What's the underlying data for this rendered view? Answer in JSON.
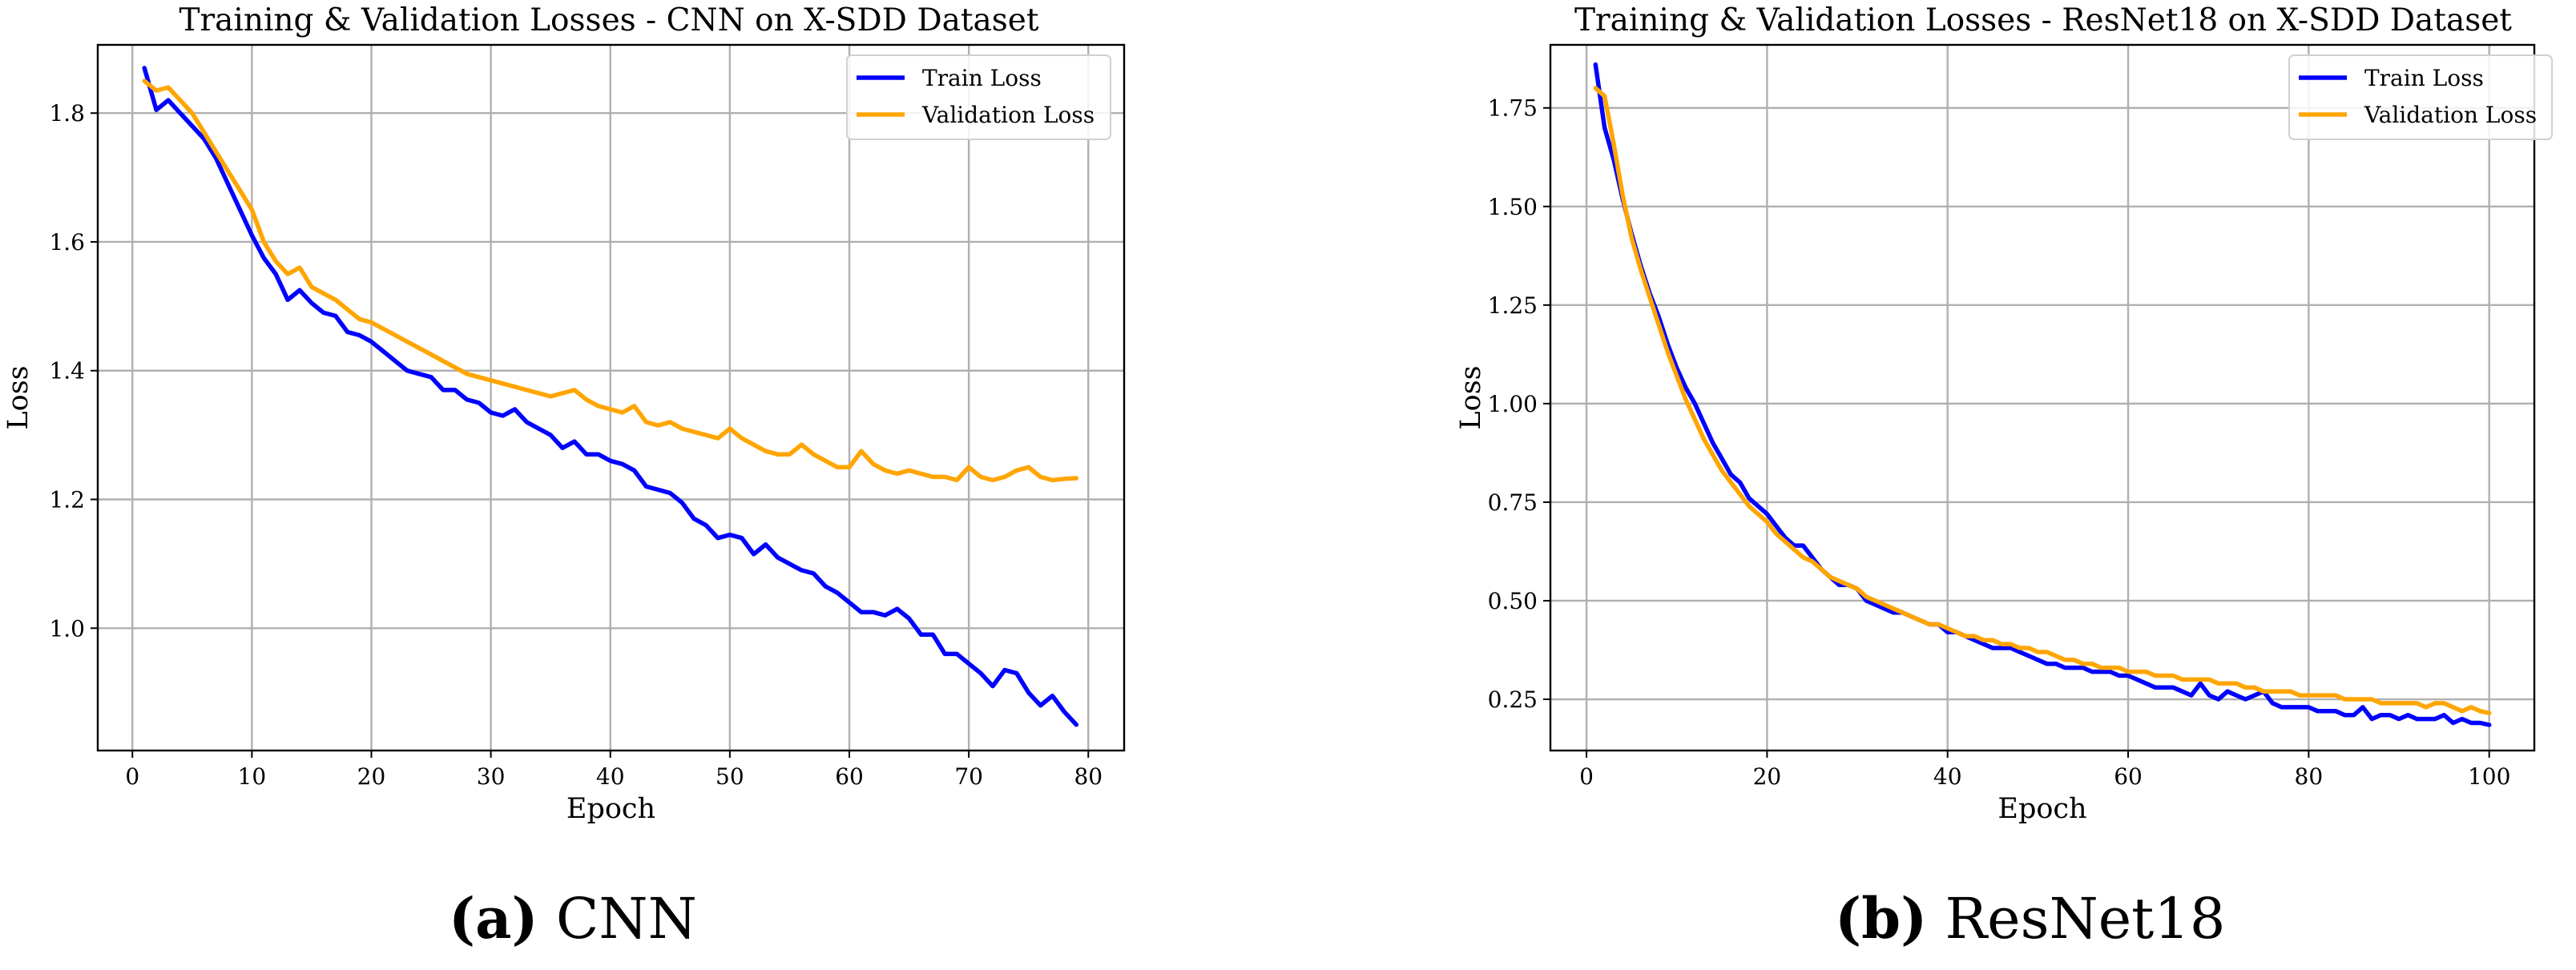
{
  "chart_data": [
    {
      "type": "line",
      "title": "Training & Validation Losses - CNN on X-SDD Dataset",
      "xlabel": "Epoch",
      "ylabel": "Loss",
      "xlim": [
        -2.9,
        83
      ],
      "ylim": [
        0.81,
        1.906
      ],
      "xticks": [
        0,
        10,
        20,
        30,
        40,
        50,
        60,
        70,
        80
      ],
      "yticks": [
        1.0,
        1.2,
        1.4,
        1.6,
        1.8
      ],
      "ytick_labels": [
        "1.0",
        "1.2",
        "1.4",
        "1.6",
        "1.8"
      ],
      "grid": true,
      "legend_position": "top-right",
      "caption_letter": "(a)",
      "caption_text": "CNN",
      "series": [
        {
          "name": "Train Loss",
          "color": "#0000ff",
          "x": [
            1,
            2,
            3,
            4,
            5,
            6,
            7,
            8,
            9,
            10,
            11,
            12,
            13,
            14,
            15,
            16,
            17,
            18,
            19,
            20,
            21,
            22,
            23,
            24,
            25,
            26,
            27,
            28,
            29,
            30,
            31,
            32,
            33,
            34,
            35,
            36,
            37,
            38,
            39,
            40,
            41,
            42,
            43,
            44,
            45,
            46,
            47,
            48,
            49,
            50,
            51,
            52,
            53,
            54,
            55,
            56,
            57,
            58,
            59,
            60,
            61,
            62,
            63,
            64,
            65,
            66,
            67,
            68,
            69,
            70,
            71,
            72,
            73,
            74,
            75,
            76,
            77,
            78,
            79
          ],
          "values": [
            1.87,
            1.805,
            1.82,
            1.8,
            1.78,
            1.76,
            1.73,
            1.69,
            1.65,
            1.61,
            1.575,
            1.55,
            1.51,
            1.525,
            1.505,
            1.49,
            1.485,
            1.46,
            1.455,
            1.445,
            1.43,
            1.415,
            1.4,
            1.395,
            1.39,
            1.37,
            1.37,
            1.355,
            1.35,
            1.335,
            1.33,
            1.34,
            1.32,
            1.31,
            1.3,
            1.28,
            1.29,
            1.27,
            1.27,
            1.26,
            1.255,
            1.245,
            1.22,
            1.215,
            1.21,
            1.195,
            1.17,
            1.16,
            1.14,
            1.145,
            1.14,
            1.115,
            1.13,
            1.11,
            1.1,
            1.09,
            1.085,
            1.065,
            1.055,
            1.04,
            1.025,
            1.025,
            1.02,
            1.03,
            1.015,
            0.99,
            0.99,
            0.96,
            0.96,
            0.945,
            0.93,
            0.91,
            0.935,
            0.93,
            0.9,
            0.88,
            0.895,
            0.87,
            0.85
          ]
        },
        {
          "name": "Validation Loss",
          "color": "#ffa500",
          "x": [
            1,
            2,
            3,
            4,
            5,
            6,
            7,
            8,
            9,
            10,
            11,
            12,
            13,
            14,
            15,
            16,
            17,
            18,
            19,
            20,
            21,
            22,
            23,
            24,
            25,
            26,
            27,
            28,
            29,
            30,
            31,
            32,
            33,
            34,
            35,
            36,
            37,
            38,
            39,
            40,
            41,
            42,
            43,
            44,
            45,
            46,
            47,
            48,
            49,
            50,
            51,
            52,
            53,
            54,
            55,
            56,
            57,
            58,
            59,
            60,
            61,
            62,
            63,
            64,
            65,
            66,
            67,
            68,
            69,
            70,
            71,
            72,
            73,
            74,
            75,
            76,
            77,
            78,
            79
          ],
          "values": [
            1.85,
            1.835,
            1.84,
            1.82,
            1.8,
            1.77,
            1.74,
            1.71,
            1.68,
            1.65,
            1.6,
            1.57,
            1.55,
            1.56,
            1.53,
            1.52,
            1.51,
            1.495,
            1.48,
            1.475,
            1.465,
            1.455,
            1.445,
            1.435,
            1.425,
            1.415,
            1.405,
            1.395,
            1.39,
            1.385,
            1.38,
            1.375,
            1.37,
            1.365,
            1.36,
            1.365,
            1.37,
            1.355,
            1.345,
            1.34,
            1.335,
            1.345,
            1.32,
            1.315,
            1.32,
            1.31,
            1.305,
            1.3,
            1.295,
            1.31,
            1.295,
            1.285,
            1.275,
            1.27,
            1.27,
            1.285,
            1.27,
            1.26,
            1.25,
            1.25,
            1.275,
            1.255,
            1.245,
            1.24,
            1.245,
            1.24,
            1.235,
            1.235,
            1.23,
            1.25,
            1.235,
            1.23,
            1.235,
            1.245,
            1.25,
            1.235,
            1.23,
            1.232,
            1.233
          ]
        }
      ]
    },
    {
      "type": "line",
      "title": "Training & Validation Losses - ResNet18 on X-SDD Dataset",
      "xlabel": "Epoch",
      "ylabel": "Loss",
      "xlim": [
        -4,
        105
      ],
      "ylim": [
        0.12,
        1.91
      ],
      "xticks": [
        0,
        20,
        40,
        60,
        80,
        100
      ],
      "yticks": [
        0.25,
        0.5,
        0.75,
        1.0,
        1.25,
        1.5,
        1.75
      ],
      "ytick_labels": [
        "0.25",
        "0.50",
        "0.75",
        "1.00",
        "1.25",
        "1.50",
        "1.75"
      ],
      "grid": true,
      "legend_position": "top-right",
      "caption_letter": "(b)",
      "caption_text": "ResNet18",
      "series": [
        {
          "name": "Train Loss",
          "color": "#0000ff",
          "x": [
            1,
            2,
            3,
            4,
            5,
            6,
            7,
            8,
            9,
            10,
            11,
            12,
            13,
            14,
            15,
            16,
            17,
            18,
            19,
            20,
            21,
            22,
            23,
            24,
            25,
            26,
            27,
            28,
            29,
            30,
            31,
            32,
            33,
            34,
            35,
            36,
            37,
            38,
            39,
            40,
            41,
            42,
            43,
            44,
            45,
            46,
            47,
            48,
            49,
            50,
            51,
            52,
            53,
            54,
            55,
            56,
            57,
            58,
            59,
            60,
            61,
            62,
            63,
            64,
            65,
            66,
            67,
            68,
            69,
            70,
            71,
            72,
            73,
            74,
            75,
            76,
            77,
            78,
            79,
            80,
            81,
            82,
            83,
            84,
            85,
            86,
            87,
            88,
            89,
            90,
            91,
            92,
            93,
            94,
            95,
            96,
            97,
            98,
            99,
            100
          ],
          "values": [
            1.86,
            1.7,
            1.62,
            1.52,
            1.43,
            1.35,
            1.28,
            1.22,
            1.15,
            1.09,
            1.04,
            1.0,
            0.95,
            0.9,
            0.86,
            0.82,
            0.8,
            0.76,
            0.74,
            0.72,
            0.69,
            0.66,
            0.64,
            0.64,
            0.61,
            0.58,
            0.56,
            0.54,
            0.54,
            0.53,
            0.5,
            0.49,
            0.48,
            0.47,
            0.47,
            0.46,
            0.45,
            0.44,
            0.44,
            0.42,
            0.42,
            0.41,
            0.4,
            0.39,
            0.38,
            0.38,
            0.38,
            0.37,
            0.36,
            0.35,
            0.34,
            0.34,
            0.33,
            0.33,
            0.33,
            0.32,
            0.32,
            0.32,
            0.31,
            0.31,
            0.3,
            0.29,
            0.28,
            0.28,
            0.28,
            0.27,
            0.26,
            0.29,
            0.26,
            0.25,
            0.27,
            0.26,
            0.25,
            0.26,
            0.27,
            0.24,
            0.23,
            0.23,
            0.23,
            0.23,
            0.22,
            0.22,
            0.22,
            0.21,
            0.21,
            0.23,
            0.2,
            0.21,
            0.21,
            0.2,
            0.21,
            0.2,
            0.2,
            0.2,
            0.21,
            0.19,
            0.2,
            0.19,
            0.19,
            0.185
          ]
        },
        {
          "name": "Validation Loss",
          "color": "#ffa500",
          "x": [
            1,
            2,
            3,
            4,
            5,
            6,
            7,
            8,
            9,
            10,
            11,
            12,
            13,
            14,
            15,
            16,
            17,
            18,
            19,
            20,
            21,
            22,
            23,
            24,
            25,
            26,
            27,
            28,
            29,
            30,
            31,
            32,
            33,
            34,
            35,
            36,
            37,
            38,
            39,
            40,
            41,
            42,
            43,
            44,
            45,
            46,
            47,
            48,
            49,
            50,
            51,
            52,
            53,
            54,
            55,
            56,
            57,
            58,
            59,
            60,
            61,
            62,
            63,
            64,
            65,
            66,
            67,
            68,
            69,
            70,
            71,
            72,
            73,
            74,
            75,
            76,
            77,
            78,
            79,
            80,
            81,
            82,
            83,
            84,
            85,
            86,
            87,
            88,
            89,
            90,
            91,
            92,
            93,
            94,
            95,
            96,
            97,
            98,
            99,
            100
          ],
          "values": [
            1.8,
            1.78,
            1.66,
            1.53,
            1.42,
            1.34,
            1.27,
            1.2,
            1.13,
            1.07,
            1.01,
            0.96,
            0.91,
            0.87,
            0.83,
            0.8,
            0.77,
            0.74,
            0.72,
            0.7,
            0.67,
            0.65,
            0.63,
            0.61,
            0.6,
            0.58,
            0.56,
            0.55,
            0.54,
            0.53,
            0.51,
            0.5,
            0.49,
            0.48,
            0.47,
            0.46,
            0.45,
            0.44,
            0.44,
            0.43,
            0.42,
            0.41,
            0.41,
            0.4,
            0.4,
            0.39,
            0.39,
            0.38,
            0.38,
            0.37,
            0.37,
            0.36,
            0.35,
            0.35,
            0.34,
            0.34,
            0.33,
            0.33,
            0.33,
            0.32,
            0.32,
            0.32,
            0.31,
            0.31,
            0.31,
            0.3,
            0.3,
            0.3,
            0.3,
            0.29,
            0.29,
            0.29,
            0.28,
            0.28,
            0.27,
            0.27,
            0.27,
            0.27,
            0.26,
            0.26,
            0.26,
            0.26,
            0.26,
            0.25,
            0.25,
            0.25,
            0.25,
            0.24,
            0.24,
            0.24,
            0.24,
            0.24,
            0.23,
            0.24,
            0.24,
            0.23,
            0.22,
            0.23,
            0.22,
            0.215
          ]
        }
      ]
    }
  ]
}
